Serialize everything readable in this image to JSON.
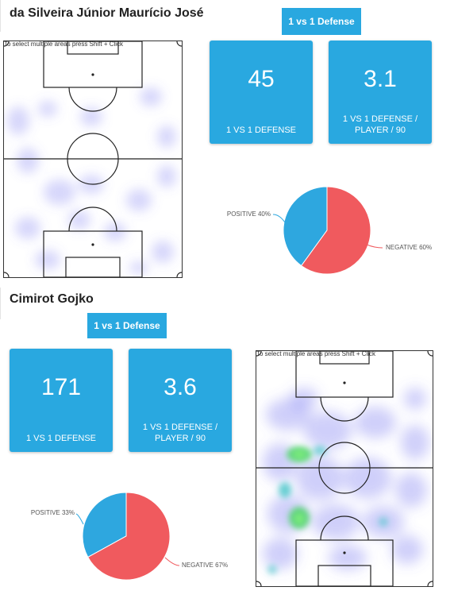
{
  "colors": {
    "accent": "#29a8e0",
    "positive": "#2ea7df",
    "negative": "#f05a5e"
  },
  "players": [
    {
      "name": "da Silveira Júnior Maurício José",
      "section_tag": "1 vs 1 Defense",
      "stats": [
        {
          "value": "45",
          "label": "1 VS 1 DEFENSE"
        },
        {
          "value": "3.1",
          "label_line1": "1 VS 1 DEFENSE /",
          "label_line2": "PLAYER / 90"
        }
      ],
      "pitch_hint": "To select multiple areas press Shift + Click",
      "chart_data": {
        "type": "pie",
        "categories": [
          "POSITIVE",
          "NEGATIVE"
        ],
        "values": [
          40,
          60
        ],
        "labels": [
          "POSITIVE 40%",
          "NEGATIVE 60%"
        ]
      }
    },
    {
      "name": "Cimirot Gojko",
      "section_tag": "1 vs 1 Defense",
      "stats": [
        {
          "value": "171",
          "label": "1 VS 1 DEFENSE"
        },
        {
          "value": "3.6",
          "label_line1": "1 VS 1 DEFENSE /",
          "label_line2": "PLAYER / 90"
        }
      ],
      "pitch_hint": "To select multiple areas press Shift + Click",
      "chart_data": {
        "type": "pie",
        "categories": [
          "POSITIVE",
          "NEGATIVE"
        ],
        "values": [
          33,
          67
        ],
        "labels": [
          "POSITIVE 33%",
          "NEGATIVE 67%"
        ]
      }
    }
  ]
}
